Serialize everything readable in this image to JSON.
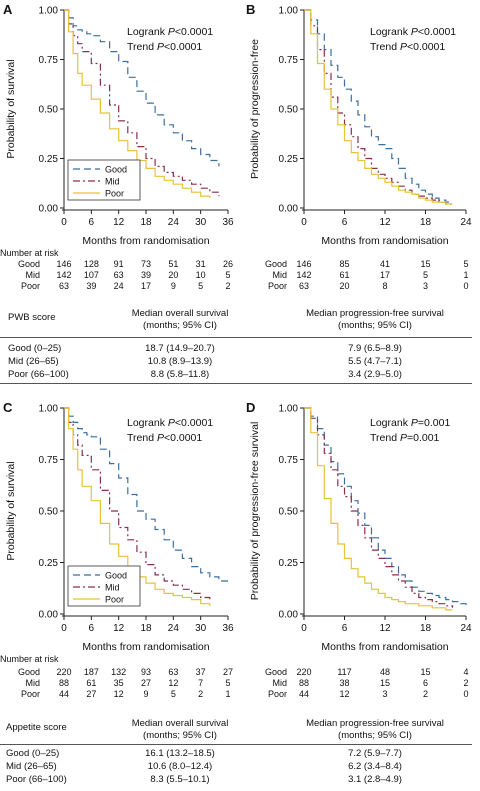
{
  "colors": {
    "Good": "#3a6f9e",
    "Mid": "#8a2f4b",
    "Poor": "#e7c23a",
    "axis": "#222222"
  },
  "chart_data": [
    {
      "id": "A",
      "type": "line",
      "panel_label": "A",
      "ylabel": "Probability of survival",
      "xlabel": "Months from randomisation",
      "xlim": [
        0,
        36
      ],
      "ylim": [
        0,
        1
      ],
      "xticks": [
        "0",
        "6",
        "12",
        "18",
        "24",
        "30",
        "36"
      ],
      "yticks": [
        "0.00",
        "0.25",
        "0.50",
        "0.75",
        "1.00"
      ],
      "stats": [
        "Logrank P<0.0001",
        "Trend P<0.0001"
      ],
      "legend": {
        "placement": "bottom-left",
        "entries": [
          "Good",
          "Mid",
          "Poor"
        ]
      },
      "series": [
        {
          "name": "Good",
          "x": [
            0,
            1,
            2,
            3,
            4,
            5,
            6,
            8,
            10,
            12,
            14,
            16,
            18,
            20,
            22,
            24,
            26,
            28,
            30,
            32,
            34
          ],
          "y": [
            1,
            0.96,
            0.92,
            0.9,
            0.89,
            0.88,
            0.87,
            0.84,
            0.79,
            0.74,
            0.66,
            0.59,
            0.53,
            0.47,
            0.42,
            0.38,
            0.34,
            0.3,
            0.27,
            0.24,
            0.21
          ]
        },
        {
          "name": "Mid",
          "x": [
            0,
            1,
            2,
            3,
            4,
            6,
            8,
            10,
            12,
            14,
            16,
            18,
            20,
            22,
            24,
            26,
            28,
            30,
            32,
            34
          ],
          "y": [
            1,
            0.93,
            0.87,
            0.83,
            0.79,
            0.73,
            0.62,
            0.52,
            0.44,
            0.38,
            0.31,
            0.25,
            0.21,
            0.18,
            0.16,
            0.14,
            0.12,
            0.1,
            0.08,
            0.06
          ]
        },
        {
          "name": "Poor",
          "x": [
            0,
            1,
            2,
            3,
            4,
            6,
            8,
            10,
            12,
            14,
            16,
            18,
            20,
            22,
            24,
            26,
            28,
            30,
            32
          ],
          "y": [
            1,
            0.89,
            0.78,
            0.68,
            0.62,
            0.55,
            0.48,
            0.4,
            0.34,
            0.29,
            0.24,
            0.2,
            0.16,
            0.14,
            0.12,
            0.1,
            0.08,
            0.06,
            0.05
          ]
        }
      ],
      "risk_table": {
        "title": "Number at risk",
        "times": [
          "0",
          "6",
          "12",
          "18",
          "24",
          "30",
          "36"
        ],
        "rows": [
          {
            "name": "Good",
            "values": [
              "146",
              "128",
              "91",
              "73",
              "51",
              "31",
              "26"
            ]
          },
          {
            "name": "Mid",
            "values": [
              "142",
              "107",
              "63",
              "39",
              "20",
              "10",
              "5"
            ]
          },
          {
            "name": "Poor",
            "values": [
              "63",
              "39",
              "24",
              "17",
              "9",
              "5",
              "2"
            ]
          }
        ]
      }
    },
    {
      "id": "B",
      "type": "line",
      "panel_label": "B",
      "ylabel": "Probability of progression-free",
      "xlabel": "Months from randomisation",
      "xlim": [
        0,
        24
      ],
      "ylim": [
        0,
        1
      ],
      "xticks": [
        "0",
        "6",
        "12",
        "18",
        "24"
      ],
      "yticks": [
        "0.00",
        "0.25",
        "0.50",
        "0.75",
        "1.00"
      ],
      "stats": [
        "Logrank P<0.0001",
        "Trend P<0.0001"
      ],
      "series": [
        {
          "name": "Good",
          "x": [
            0,
            1,
            2,
            3,
            4,
            5,
            6,
            7,
            8,
            9,
            10,
            11,
            12,
            13,
            14,
            15,
            16,
            17,
            18,
            19,
            20,
            21,
            22
          ],
          "y": [
            1,
            0.95,
            0.88,
            0.8,
            0.72,
            0.66,
            0.6,
            0.54,
            0.47,
            0.41,
            0.36,
            0.32,
            0.3,
            0.25,
            0.2,
            0.15,
            0.12,
            0.09,
            0.07,
            0.05,
            0.04,
            0.03,
            0.03
          ]
        },
        {
          "name": "Mid",
          "x": [
            0,
            1,
            2,
            3,
            4,
            5,
            6,
            7,
            8,
            9,
            10,
            11,
            12,
            13,
            14,
            15,
            16,
            17,
            18,
            19,
            20,
            21,
            22
          ],
          "y": [
            1,
            0.92,
            0.8,
            0.68,
            0.56,
            0.48,
            0.42,
            0.36,
            0.3,
            0.25,
            0.2,
            0.17,
            0.15,
            0.13,
            0.11,
            0.09,
            0.07,
            0.06,
            0.05,
            0.04,
            0.03,
            0.02,
            0.02
          ]
        },
        {
          "name": "Poor",
          "x": [
            0,
            1,
            2,
            3,
            4,
            5,
            6,
            7,
            8,
            9,
            10,
            11,
            12,
            13,
            14,
            15,
            16,
            17,
            18,
            19,
            20,
            21,
            22
          ],
          "y": [
            1,
            0.88,
            0.73,
            0.6,
            0.5,
            0.42,
            0.34,
            0.28,
            0.24,
            0.2,
            0.17,
            0.15,
            0.13,
            0.11,
            0.09,
            0.08,
            0.07,
            0.05,
            0.04,
            0.03,
            0.03,
            0.02,
            0.02
          ]
        }
      ],
      "risk_table": {
        "times": [
          "0",
          "6",
          "12",
          "18",
          "24"
        ],
        "rows": [
          {
            "name": "Good",
            "values": [
              "146",
              "85",
              "41",
              "15",
              "5"
            ]
          },
          {
            "name": "Mid",
            "values": [
              "142",
              "61",
              "17",
              "5",
              "1"
            ]
          },
          {
            "name": "Poor",
            "values": [
              "63",
              "20",
              "8",
              "3",
              "0"
            ]
          }
        ]
      }
    },
    {
      "id": "C",
      "type": "line",
      "panel_label": "C",
      "ylabel": "Probability of survival",
      "xlabel": "Months from randomisation",
      "xlim": [
        0,
        36
      ],
      "ylim": [
        0,
        1
      ],
      "xticks": [
        "0",
        "6",
        "12",
        "18",
        "24",
        "30",
        "36"
      ],
      "yticks": [
        "0.00",
        "0.25",
        "0.50",
        "0.75",
        "1.00"
      ],
      "stats": [
        "Logrank P<0.0001",
        "Trend P<0.0001"
      ],
      "legend": {
        "placement": "bottom-left",
        "entries": [
          "Good",
          "Mid",
          "Poor"
        ]
      },
      "series": [
        {
          "name": "Good",
          "x": [
            0,
            1,
            2,
            3,
            4,
            5,
            6,
            8,
            10,
            12,
            14,
            16,
            18,
            20,
            22,
            24,
            26,
            28,
            30,
            32,
            34,
            36
          ],
          "y": [
            1,
            0.96,
            0.93,
            0.9,
            0.88,
            0.87,
            0.86,
            0.8,
            0.73,
            0.66,
            0.58,
            0.5,
            0.46,
            0.41,
            0.36,
            0.31,
            0.27,
            0.23,
            0.2,
            0.18,
            0.16,
            0.16
          ]
        },
        {
          "name": "Mid",
          "x": [
            0,
            1,
            2,
            3,
            4,
            6,
            8,
            10,
            12,
            14,
            16,
            18,
            20,
            22,
            24,
            26,
            28,
            30,
            32
          ],
          "y": [
            1,
            0.93,
            0.87,
            0.82,
            0.77,
            0.7,
            0.6,
            0.5,
            0.42,
            0.36,
            0.3,
            0.24,
            0.19,
            0.16,
            0.14,
            0.12,
            0.1,
            0.08,
            0.06
          ]
        },
        {
          "name": "Poor",
          "x": [
            0,
            1,
            2,
            3,
            4,
            6,
            8,
            10,
            12,
            14,
            16,
            18,
            20,
            22,
            24,
            26,
            28,
            30,
            32
          ],
          "y": [
            1,
            0.9,
            0.8,
            0.7,
            0.62,
            0.55,
            0.44,
            0.34,
            0.28,
            0.21,
            0.18,
            0.15,
            0.12,
            0.1,
            0.09,
            0.08,
            0.07,
            0.05,
            0.04
          ]
        }
      ],
      "risk_table": {
        "title": "Number at risk",
        "times": [
          "0",
          "6",
          "12",
          "18",
          "24",
          "30",
          "36"
        ],
        "rows": [
          {
            "name": "Good",
            "values": [
              "220",
              "187",
              "132",
              "93",
              "63",
              "37",
              "27"
            ]
          },
          {
            "name": "Mid",
            "values": [
              "88",
              "61",
              "35",
              "27",
              "12",
              "7",
              "5"
            ]
          },
          {
            "name": "Poor",
            "values": [
              "44",
              "27",
              "12",
              "9",
              "5",
              "2",
              "1"
            ]
          }
        ]
      }
    },
    {
      "id": "D",
      "type": "line",
      "panel_label": "D",
      "ylabel": "Probability of progression-free survival",
      "xlabel": "Months from randomisation",
      "xlim": [
        0,
        24
      ],
      "ylim": [
        0,
        1
      ],
      "xticks": [
        "0",
        "6",
        "12",
        "18",
        "24"
      ],
      "yticks": [
        "0.00",
        "0.25",
        "0.50",
        "0.75",
        "1.00"
      ],
      "stats": [
        "Logrank P=0.001",
        "Trend P=0.001"
      ],
      "series": [
        {
          "name": "Good",
          "x": [
            0,
            1,
            2,
            3,
            4,
            5,
            6,
            7,
            8,
            9,
            10,
            11,
            12,
            13,
            14,
            15,
            16,
            17,
            18,
            19,
            20,
            21,
            22,
            23,
            24
          ],
          "y": [
            1,
            0.96,
            0.9,
            0.82,
            0.74,
            0.68,
            0.62,
            0.55,
            0.49,
            0.43,
            0.37,
            0.31,
            0.27,
            0.23,
            0.19,
            0.16,
            0.13,
            0.11,
            0.1,
            0.09,
            0.08,
            0.07,
            0.06,
            0.05,
            0.04
          ]
        },
        {
          "name": "Mid",
          "x": [
            0,
            1,
            2,
            3,
            4,
            5,
            6,
            7,
            8,
            9,
            10,
            11,
            12,
            13,
            14,
            15,
            16,
            17,
            18,
            19,
            20,
            21,
            22
          ],
          "y": [
            1,
            0.95,
            0.87,
            0.78,
            0.7,
            0.62,
            0.57,
            0.5,
            0.43,
            0.37,
            0.31,
            0.27,
            0.23,
            0.19,
            0.16,
            0.13,
            0.1,
            0.08,
            0.07,
            0.06,
            0.05,
            0.04,
            0.03
          ]
        },
        {
          "name": "Poor",
          "x": [
            0,
            1,
            2,
            3,
            4,
            5,
            6,
            7,
            8,
            9,
            10,
            11,
            12,
            13,
            14,
            15,
            16,
            17,
            18,
            19,
            20,
            21,
            22
          ],
          "y": [
            1,
            0.88,
            0.72,
            0.56,
            0.44,
            0.34,
            0.27,
            0.22,
            0.18,
            0.15,
            0.12,
            0.1,
            0.08,
            0.07,
            0.06,
            0.05,
            0.05,
            0.04,
            0.04,
            0.03,
            0.03,
            0.02,
            0.02
          ]
        }
      ],
      "risk_table": {
        "times": [
          "0",
          "6",
          "12",
          "18",
          "24"
        ],
        "rows": [
          {
            "name": "Good",
            "values": [
              "220",
              "117",
              "48",
              "15",
              "4"
            ]
          },
          {
            "name": "Mid",
            "values": [
              "88",
              "38",
              "15",
              "6",
              "2"
            ]
          },
          {
            "name": "Poor",
            "values": [
              "44",
              "12",
              "3",
              "2",
              "0"
            ]
          }
        ]
      }
    }
  ],
  "tables": {
    "pwb": {
      "headers": [
        "PWB score",
        "Median overall survival\n(months; 95% CI)",
        "Median progression-free survival\n(months; 95% CI)"
      ],
      "rows": [
        [
          "Good (0–25)",
          "18.7 (14.9–20.7)",
          "7.9 (6.5–8.9)"
        ],
        [
          "Mid (26–65)",
          "10.8 (8.9–13.9)",
          "5.5 (4.7–7.1)"
        ],
        [
          "Poor (66–100)",
          "8.8 (5.8–11.8)",
          "3.4 (2.9–5.0)"
        ]
      ]
    },
    "appetite": {
      "headers": [
        "Appetite score",
        "Median overall survival\n(months; 95% CI)",
        "Median progression-free survival\n(months; 95% CI)"
      ],
      "rows": [
        [
          "Good (0–25)",
          "16.1 (13.2–18.5)",
          "7.2 (5.9–7.7)"
        ],
        [
          "Mid (26–65)",
          "10.6 (8.0–12.4)",
          "6.2 (3.4–8.4)"
        ],
        [
          "Poor (66–100)",
          "8.3 (5.5–10.1)",
          "3.1 (2.8–4.9)"
        ]
      ]
    }
  }
}
